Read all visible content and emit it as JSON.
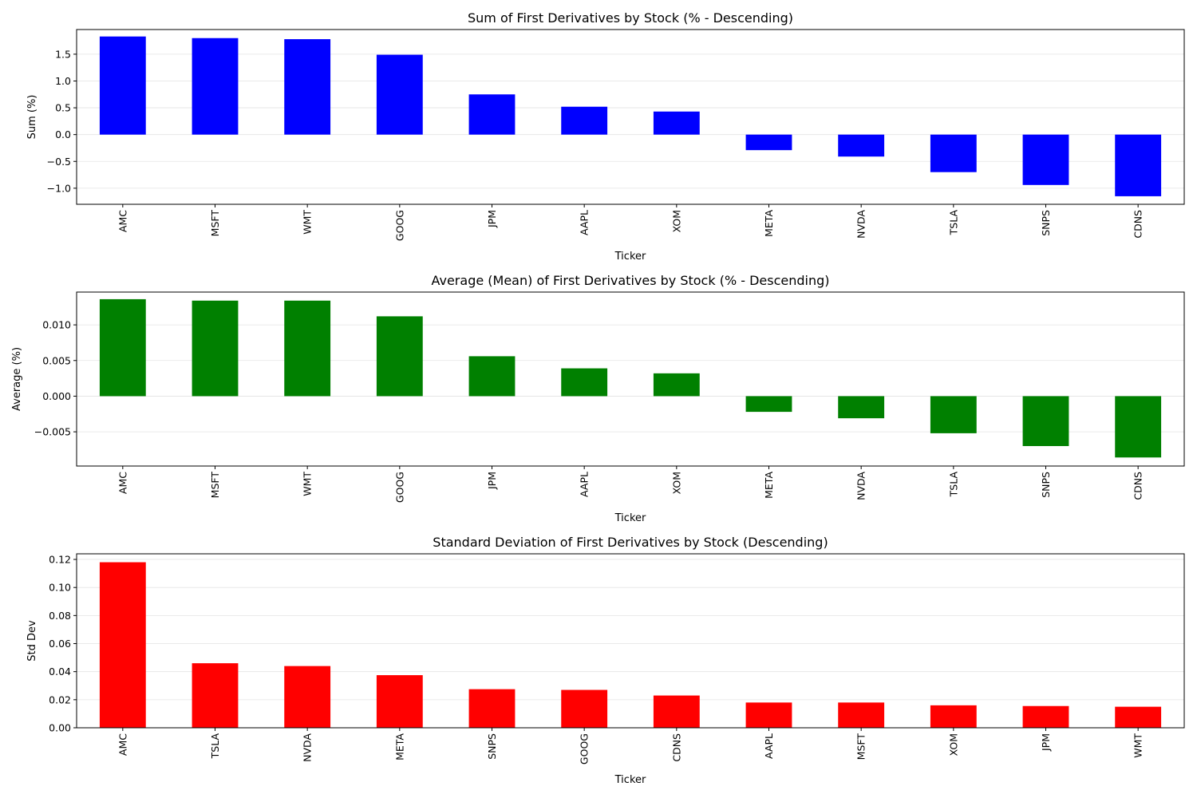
{
  "chart_data": [
    {
      "type": "bar",
      "title": "Sum of First Derivatives by Stock (% - Descending)",
      "xlabel": "Ticker",
      "ylabel": "Sum (%)",
      "categories": [
        "AMC",
        "MSFT",
        "WMT",
        "GOOG",
        "JPM",
        "AAPL",
        "XOM",
        "META",
        "NVDA",
        "TSLA",
        "SNPS",
        "CDNS"
      ],
      "values": [
        1.83,
        1.8,
        1.78,
        1.49,
        0.75,
        0.52,
        0.43,
        -0.29,
        -0.41,
        -0.7,
        -0.94,
        -1.15
      ],
      "ylim": [
        -1.3,
        1.96
      ],
      "yticks": [
        -1.0,
        -0.5,
        0.0,
        0.5,
        1.0,
        1.5
      ],
      "ytick_labels": [
        "−1.0",
        "−0.5",
        "0.0",
        "0.5",
        "1.0",
        "1.5"
      ],
      "color": "#0000ff",
      "grid": "y"
    },
    {
      "type": "bar",
      "title": "Average (Mean) of First Derivatives by Stock (% - Descending)",
      "xlabel": "Ticker",
      "ylabel": "Average (%)",
      "categories": [
        "AMC",
        "MSFT",
        "WMT",
        "GOOG",
        "JPM",
        "AAPL",
        "XOM",
        "META",
        "NVDA",
        "TSLA",
        "SNPS",
        "CDNS"
      ],
      "values": [
        0.0136,
        0.0134,
        0.0134,
        0.0112,
        0.0056,
        0.0039,
        0.0032,
        -0.0022,
        -0.0031,
        -0.0052,
        -0.007,
        -0.0086
      ],
      "ylim": [
        -0.0098,
        0.0146
      ],
      "yticks": [
        -0.005,
        0.0,
        0.005,
        0.01
      ],
      "ytick_labels": [
        "−0.005",
        "0.000",
        "0.005",
        "0.010"
      ],
      "color": "#008000",
      "grid": "y"
    },
    {
      "type": "bar",
      "title": "Standard Deviation of First Derivatives by Stock (Descending)",
      "xlabel": "Ticker",
      "ylabel": "Std Dev",
      "categories": [
        "AMC",
        "TSLA",
        "NVDA",
        "META",
        "SNPS",
        "GOOG",
        "CDNS",
        "AAPL",
        "MSFT",
        "XOM",
        "JPM",
        "WMT"
      ],
      "values": [
        0.118,
        0.046,
        0.044,
        0.0375,
        0.0275,
        0.027,
        0.023,
        0.018,
        0.018,
        0.016,
        0.0155,
        0.015
      ],
      "ylim": [
        0.0,
        0.124
      ],
      "yticks": [
        0.0,
        0.02,
        0.04,
        0.06,
        0.08,
        0.1,
        0.12
      ],
      "ytick_labels": [
        "0.00",
        "0.02",
        "0.04",
        "0.06",
        "0.08",
        "0.10",
        "0.12"
      ],
      "color": "#ff0000",
      "grid": "y"
    }
  ]
}
